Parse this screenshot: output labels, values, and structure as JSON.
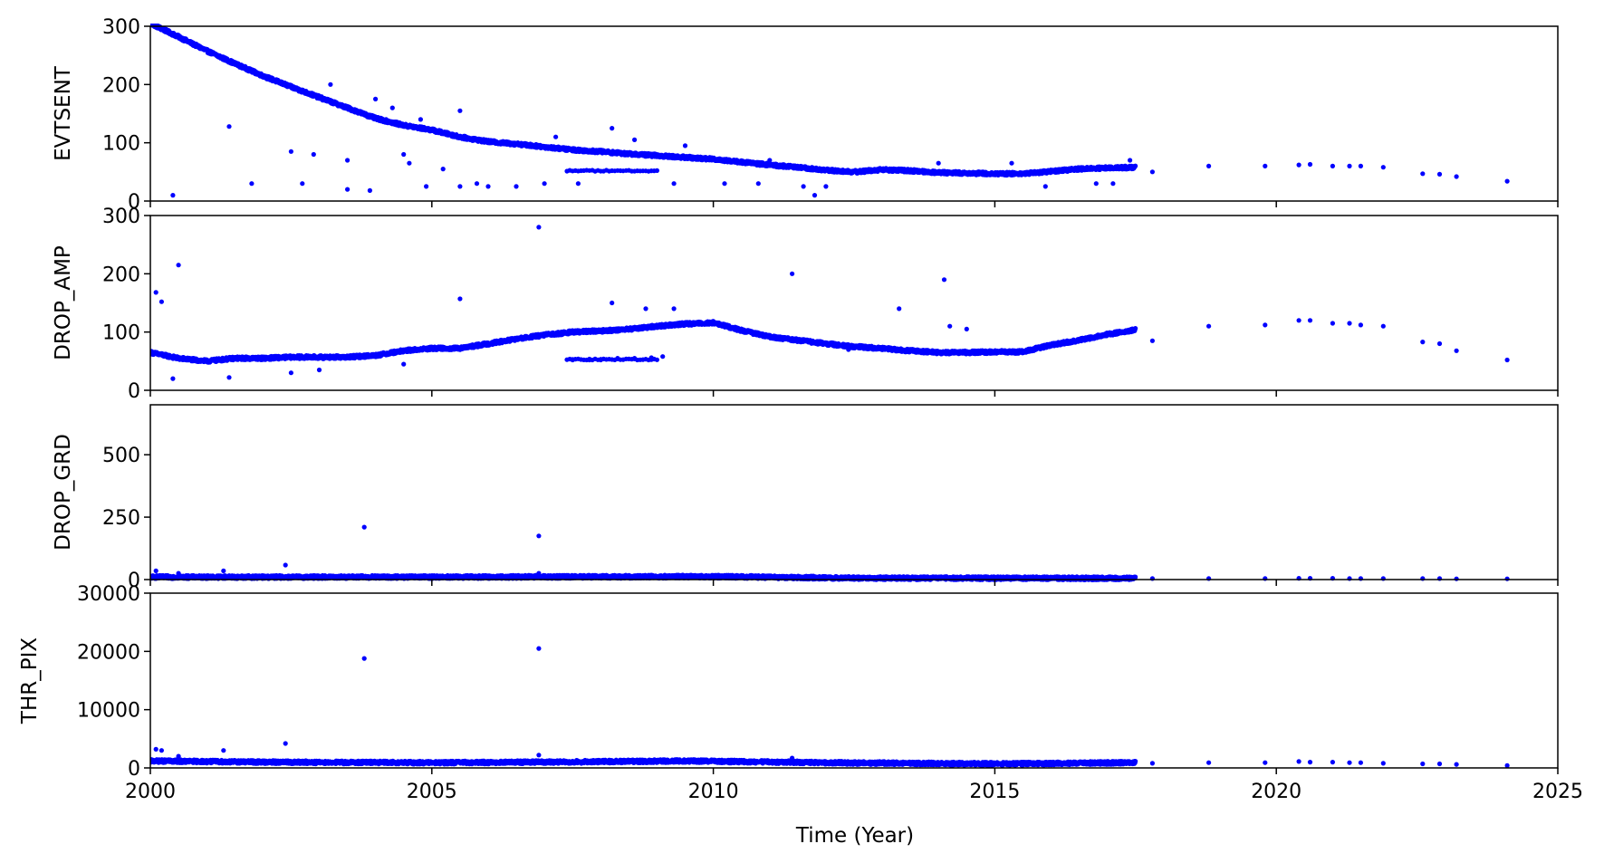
{
  "chart_data": {
    "type": "scatter",
    "x_label": "Time (Year)",
    "x_range": [
      2000,
      2025
    ],
    "x_ticks": [
      "2000",
      "2005",
      "2010",
      "2015",
      "2020",
      "2025"
    ],
    "marker_color": "#0000ff",
    "panels": [
      {
        "name": "EVTSENT",
        "ylabel": "EVTSENT",
        "ylim": [
          0,
          300
        ],
        "y_ticks": [
          "0",
          "100",
          "200",
          "300"
        ],
        "trend": [
          [
            2000.0,
            305
          ],
          [
            2000.5,
            282
          ],
          [
            2001.0,
            258
          ],
          [
            2001.5,
            236
          ],
          [
            2002.0,
            215
          ],
          [
            2002.5,
            196
          ],
          [
            2003.0,
            178
          ],
          [
            2003.5,
            160
          ],
          [
            2004.0,
            142
          ],
          [
            2004.5,
            130
          ],
          [
            2005.0,
            122
          ],
          [
            2005.5,
            110
          ],
          [
            2006.0,
            102
          ],
          [
            2006.5,
            98
          ],
          [
            2007.0,
            93
          ],
          [
            2007.5,
            88
          ],
          [
            2008.0,
            85
          ],
          [
            2008.5,
            81
          ],
          [
            2009.0,
            78
          ],
          [
            2009.5,
            75
          ],
          [
            2010.0,
            72
          ],
          [
            2010.5,
            67
          ],
          [
            2011.0,
            62
          ],
          [
            2011.5,
            58
          ],
          [
            2012.0,
            53
          ],
          [
            2012.5,
            50
          ],
          [
            2013.0,
            54
          ],
          [
            2013.5,
            52
          ],
          [
            2014.0,
            49
          ],
          [
            2014.5,
            48
          ],
          [
            2015.0,
            47
          ],
          [
            2015.5,
            47
          ],
          [
            2016.0,
            51
          ],
          [
            2016.5,
            55
          ],
          [
            2017.0,
            57
          ],
          [
            2017.5,
            58
          ]
        ],
        "points": [
          [
            2000.4,
            10
          ],
          [
            2001.4,
            128
          ],
          [
            2001.8,
            30
          ],
          [
            2002.5,
            85
          ],
          [
            2002.7,
            30
          ],
          [
            2002.9,
            80
          ],
          [
            2003.2,
            200
          ],
          [
            2003.5,
            70
          ],
          [
            2003.5,
            20
          ],
          [
            2003.9,
            18
          ],
          [
            2004.0,
            175
          ],
          [
            2004.3,
            160
          ],
          [
            2004.5,
            80
          ],
          [
            2004.6,
            65
          ],
          [
            2004.8,
            140
          ],
          [
            2004.9,
            25
          ],
          [
            2005.2,
            55
          ],
          [
            2005.5,
            155
          ],
          [
            2005.5,
            25
          ],
          [
            2005.8,
            30
          ],
          [
            2006.0,
            25
          ],
          [
            2006.5,
            25
          ],
          [
            2007.0,
            30
          ],
          [
            2007.2,
            110
          ],
          [
            2007.6,
            30
          ],
          [
            2008.2,
            125
          ],
          [
            2008.6,
            105
          ],
          [
            2009.3,
            30
          ],
          [
            2009.5,
            95
          ],
          [
            2010.2,
            30
          ],
          [
            2010.8,
            30
          ],
          [
            2011.0,
            70
          ],
          [
            2011.6,
            25
          ],
          [
            2011.8,
            10
          ],
          [
            2012.0,
            25
          ],
          [
            2014.0,
            65
          ],
          [
            2015.3,
            65
          ],
          [
            2015.9,
            25
          ],
          [
            2016.8,
            30
          ],
          [
            2017.1,
            30
          ],
          [
            2017.4,
            70
          ],
          [
            2017.8,
            50
          ],
          [
            2018.8,
            60
          ],
          [
            2019.8,
            60
          ],
          [
            2020.4,
            62
          ],
          [
            2020.6,
            63
          ],
          [
            2021.0,
            60
          ],
          [
            2021.3,
            60
          ],
          [
            2021.5,
            60
          ],
          [
            2021.9,
            58
          ],
          [
            2022.6,
            47
          ],
          [
            2022.9,
            46
          ],
          [
            2023.2,
            42
          ],
          [
            2024.1,
            34
          ]
        ],
        "cluster": {
          "x_from": 2007.4,
          "x_to": 2009.0,
          "y": 52
        }
      },
      {
        "name": "DROP_AMP",
        "ylabel": "DROP_AMP",
        "ylim": [
          0,
          300
        ],
        "y_ticks": [
          "0",
          "100",
          "200",
          "300"
        ],
        "trend": [
          [
            2000.0,
            65
          ],
          [
            2000.5,
            55
          ],
          [
            2001.0,
            50
          ],
          [
            2001.5,
            55
          ],
          [
            2002.0,
            55
          ],
          [
            2002.5,
            57
          ],
          [
            2003.0,
            57
          ],
          [
            2003.5,
            57
          ],
          [
            2004.0,
            60
          ],
          [
            2004.5,
            68
          ],
          [
            2005.0,
            72
          ],
          [
            2005.5,
            72
          ],
          [
            2006.0,
            80
          ],
          [
            2006.5,
            88
          ],
          [
            2007.0,
            95
          ],
          [
            2007.5,
            100
          ],
          [
            2008.0,
            102
          ],
          [
            2008.5,
            105
          ],
          [
            2009.0,
            110
          ],
          [
            2009.5,
            114
          ],
          [
            2010.0,
            116
          ],
          [
            2010.5,
            103
          ],
          [
            2011.0,
            92
          ],
          [
            2011.5,
            86
          ],
          [
            2012.0,
            80
          ],
          [
            2012.5,
            75
          ],
          [
            2013.0,
            72
          ],
          [
            2013.5,
            68
          ],
          [
            2014.0,
            65
          ],
          [
            2014.5,
            65
          ],
          [
            2015.0,
            66
          ],
          [
            2015.5,
            66
          ],
          [
            2016.0,
            78
          ],
          [
            2016.5,
            86
          ],
          [
            2017.0,
            96
          ],
          [
            2017.5,
            104
          ]
        ],
        "points": [
          [
            2000.1,
            168
          ],
          [
            2000.2,
            152
          ],
          [
            2000.5,
            215
          ],
          [
            2000.4,
            20
          ],
          [
            2001.4,
            22
          ],
          [
            2002.5,
            30
          ],
          [
            2003.0,
            35
          ],
          [
            2004.5,
            45
          ],
          [
            2005.5,
            157
          ],
          [
            2006.9,
            280
          ],
          [
            2007.5,
            52
          ],
          [
            2007.8,
            52
          ],
          [
            2008.0,
            52
          ],
          [
            2008.3,
            55
          ],
          [
            2008.6,
            55
          ],
          [
            2008.9,
            56
          ],
          [
            2009.1,
            58
          ],
          [
            2008.2,
            150
          ],
          [
            2008.8,
            140
          ],
          [
            2009.3,
            140
          ],
          [
            2011.4,
            200
          ],
          [
            2012.4,
            70
          ],
          [
            2013.3,
            140
          ],
          [
            2014.1,
            190
          ],
          [
            2014.2,
            110
          ],
          [
            2014.5,
            105
          ],
          [
            2017.8,
            85
          ],
          [
            2018.8,
            110
          ],
          [
            2019.8,
            112
          ],
          [
            2020.4,
            120
          ],
          [
            2020.6,
            120
          ],
          [
            2021.0,
            115
          ],
          [
            2021.3,
            115
          ],
          [
            2021.5,
            112
          ],
          [
            2021.9,
            110
          ],
          [
            2022.6,
            83
          ],
          [
            2022.9,
            80
          ],
          [
            2023.2,
            68
          ],
          [
            2024.1,
            52
          ]
        ],
        "cluster": {
          "x_from": 2007.4,
          "x_to": 2009.0,
          "y": 53
        }
      },
      {
        "name": "DROP_GRD",
        "ylabel": "DROP_GRD",
        "ylim": [
          0,
          700
        ],
        "y_ticks": [
          "0",
          "250",
          "500"
        ],
        "trend": [
          [
            2000.0,
            10
          ],
          [
            2005.0,
            10
          ],
          [
            2010.0,
            12
          ],
          [
            2012.5,
            6
          ],
          [
            2017.5,
            5
          ]
        ],
        "points": [
          [
            2000.1,
            35
          ],
          [
            2000.5,
            25
          ],
          [
            2001.3,
            35
          ],
          [
            2002.4,
            58
          ],
          [
            2003.8,
            210
          ],
          [
            2006.9,
            175
          ],
          [
            2006.9,
            25
          ],
          [
            2017.8,
            4
          ],
          [
            2018.8,
            4
          ],
          [
            2019.8,
            4
          ],
          [
            2020.4,
            5
          ],
          [
            2020.6,
            5
          ],
          [
            2021.0,
            5
          ],
          [
            2021.3,
            4
          ],
          [
            2021.5,
            4
          ],
          [
            2021.9,
            4
          ],
          [
            2022.6,
            4
          ],
          [
            2022.9,
            4
          ],
          [
            2023.2,
            3
          ],
          [
            2024.1,
            3
          ]
        ]
      },
      {
        "name": "THR_PIX",
        "ylabel": "THR_PIX",
        "ylim": [
          0,
          30000
        ],
        "y_ticks": [
          "0",
          "10000",
          "20000",
          "30000"
        ],
        "trend": [
          [
            2000.0,
            1200
          ],
          [
            2002.0,
            1000
          ],
          [
            2005.0,
            900
          ],
          [
            2007.0,
            1000
          ],
          [
            2009.5,
            1200
          ],
          [
            2012.0,
            900
          ],
          [
            2015.0,
            700
          ],
          [
            2017.5,
            900
          ]
        ],
        "points": [
          [
            2000.1,
            3200
          ],
          [
            2000.2,
            3000
          ],
          [
            2000.5,
            2000
          ],
          [
            2001.3,
            3000
          ],
          [
            2002.4,
            4200
          ],
          [
            2003.8,
            18800
          ],
          [
            2006.9,
            20500
          ],
          [
            2006.9,
            2200
          ],
          [
            2011.4,
            1700
          ],
          [
            2017.8,
            800
          ],
          [
            2018.8,
            900
          ],
          [
            2019.8,
            900
          ],
          [
            2020.4,
            1100
          ],
          [
            2020.6,
            1000
          ],
          [
            2021.0,
            1000
          ],
          [
            2021.3,
            900
          ],
          [
            2021.5,
            900
          ],
          [
            2021.9,
            800
          ],
          [
            2022.6,
            700
          ],
          [
            2022.9,
            700
          ],
          [
            2023.2,
            600
          ],
          [
            2024.1,
            400
          ]
        ]
      }
    ]
  }
}
